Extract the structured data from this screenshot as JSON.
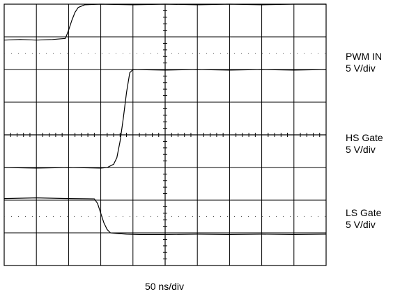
{
  "chart_data": {
    "type": "line",
    "x_unit": "div",
    "y_unit": "div",
    "xlim": [
      0,
      10
    ],
    "ylim": [
      0,
      8
    ],
    "grid": true,
    "timebase": "50 ns/div",
    "series": [
      {
        "name": "PWM IN",
        "scale": "5 V/div",
        "color": "#000000",
        "x": [
          0,
          0.5,
          1.0,
          1.5,
          1.9,
          2.0,
          2.1,
          2.2,
          2.3,
          2.5,
          3.0,
          4.0,
          5.0,
          6.0,
          7.0,
          8.0,
          9.0,
          10.0
        ],
        "y": [
          6.9,
          6.92,
          6.9,
          6.92,
          6.95,
          7.2,
          7.5,
          7.75,
          7.9,
          7.98,
          8.0,
          7.98,
          8.0,
          7.98,
          8.0,
          7.98,
          8.0,
          8.0
        ]
      },
      {
        "name": "HS Gate",
        "scale": "5 V/div",
        "color": "#000000",
        "x": [
          0,
          1.0,
          2.0,
          3.0,
          3.2,
          3.4,
          3.5,
          3.6,
          3.7,
          3.8,
          3.9,
          4.0,
          5.0,
          6.0,
          7.0,
          8.0,
          9.0,
          10.0
        ],
        "y": [
          3.0,
          2.98,
          3.0,
          2.98,
          3.0,
          3.1,
          3.3,
          3.8,
          4.5,
          5.3,
          5.9,
          6.0,
          5.98,
          6.0,
          5.98,
          6.0,
          5.98,
          6.0
        ]
      },
      {
        "name": "LS Gate",
        "scale": "5 V/div",
        "color": "#000000",
        "x": [
          0,
          1.0,
          2.0,
          2.8,
          2.9,
          3.0,
          3.1,
          3.2,
          3.3,
          3.5,
          3.8,
          4.2,
          5.0,
          6.0,
          7.0,
          8.0,
          9.0,
          10.0
        ],
        "y": [
          2.05,
          2.07,
          2.05,
          2.04,
          1.9,
          1.6,
          1.3,
          1.1,
          1.0,
          0.98,
          0.96,
          0.95,
          0.95,
          0.96,
          0.95,
          0.96,
          0.95,
          0.96
        ]
      }
    ]
  }
}
